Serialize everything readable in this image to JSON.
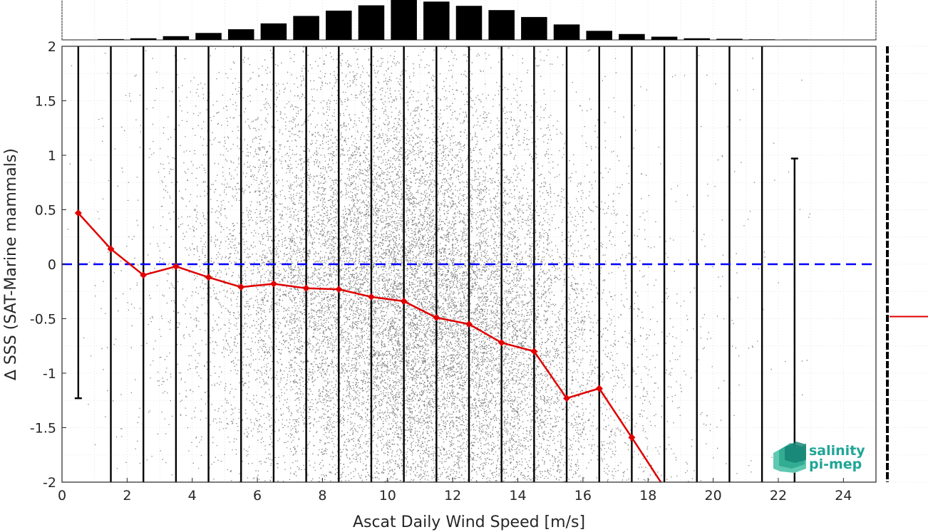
{
  "chart_data": {
    "type": "scatter",
    "xlabel": "Ascat Daily Wind Speed [m/s]",
    "ylabel": "∆ SSS (SAT-Marine mammals)",
    "xlim": [
      0,
      25
    ],
    "ylim": [
      -2,
      2
    ],
    "xticks": [
      "0",
      "2",
      "4",
      "6",
      "8",
      "10",
      "12",
      "14",
      "16",
      "18",
      "20",
      "22",
      "24"
    ],
    "yticks": [
      "2",
      "1.5",
      "1",
      "0.5",
      "0",
      "-0.5",
      "-1",
      "-1.5",
      "-2"
    ],
    "grid": true,
    "zero_line": {
      "y": 0,
      "color": "#0000ff",
      "style": "dashed"
    },
    "scatter_color": "#808080",
    "bin_centers": [
      0.5,
      1.5,
      2.5,
      3.5,
      4.5,
      5.5,
      6.5,
      7.5,
      8.5,
      9.5,
      10.5,
      11.5,
      12.5,
      13.5,
      14.5,
      15.5,
      16.5,
      17.5,
      18.5,
      19.5,
      20.5,
      21.5,
      22.5
    ],
    "histogram_counts": [
      0.3,
      1.5,
      3,
      7,
      13,
      20,
      31,
      45,
      55,
      65,
      75,
      72,
      64,
      56,
      43,
      29,
      17,
      11,
      6,
      3,
      2,
      1,
      0.5
    ],
    "bin_median": {
      "name": "median",
      "color": "#e00000",
      "x": [
        0.5,
        1.5,
        2.5,
        3.5,
        4.5,
        5.5,
        6.5,
        7.5,
        8.5,
        9.5,
        10.5,
        11.5,
        12.5,
        13.5,
        14.5,
        15.5,
        16.5,
        17.5,
        18.5
      ],
      "y": [
        0.47,
        0.14,
        -0.1,
        -0.02,
        -0.12,
        -0.21,
        -0.18,
        -0.22,
        -0.23,
        -0.3,
        -0.34,
        -0.49,
        -0.55,
        -0.72,
        -0.8,
        -1.23,
        -1.14,
        -1.59,
        -2.05
      ]
    },
    "error_bars": [
      {
        "x": 0.5,
        "low": -1.23,
        "high": 2.0
      },
      {
        "x": 22.5,
        "low": -2.0,
        "high": 0.97
      }
    ],
    "overall_median": -0.48
  },
  "logo": {
    "line1": "salinity",
    "line2": "pi-mep"
  }
}
